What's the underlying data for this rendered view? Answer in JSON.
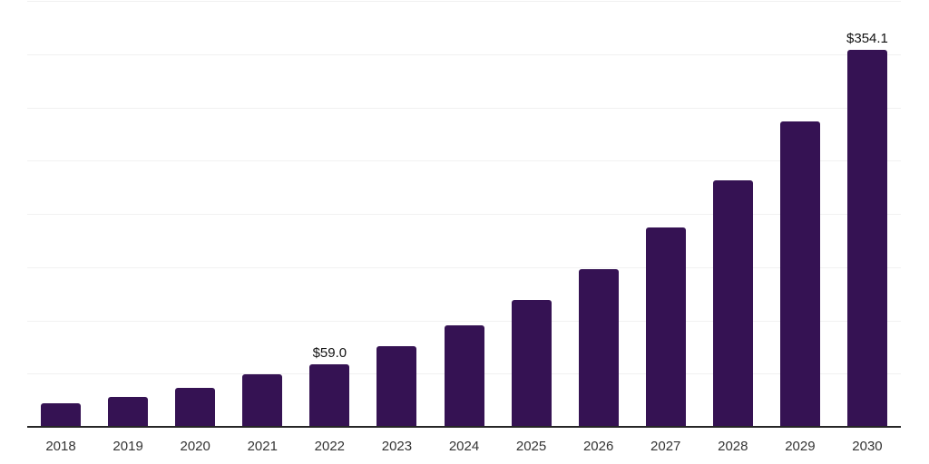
{
  "chart_data": {
    "type": "bar",
    "title": "",
    "xlabel": "",
    "ylabel": "",
    "categories": [
      "2018",
      "2019",
      "2020",
      "2021",
      "2022",
      "2023",
      "2024",
      "2025",
      "2026",
      "2027",
      "2028",
      "2029",
      "2030"
    ],
    "values": [
      21.9,
      28.5,
      37.0,
      49.0,
      59.0,
      75.7,
      95.1,
      119.2,
      148.5,
      186.9,
      231.5,
      286.5,
      354.1
    ],
    "value_labels": {
      "2022": "$59.0",
      "2030": "$354.1"
    },
    "ylim": [
      0,
      400
    ],
    "ytick_interval": 50,
    "yaxis_tick_labels_visible": false,
    "grid": "horizontal",
    "legend_position": "none",
    "colors": {
      "bar": "#351253",
      "gridline": "#F1F1F1",
      "axis_line": "#262626",
      "tick_label": "#333333",
      "value_label": "#111111",
      "background": "#FFFFFF"
    }
  }
}
